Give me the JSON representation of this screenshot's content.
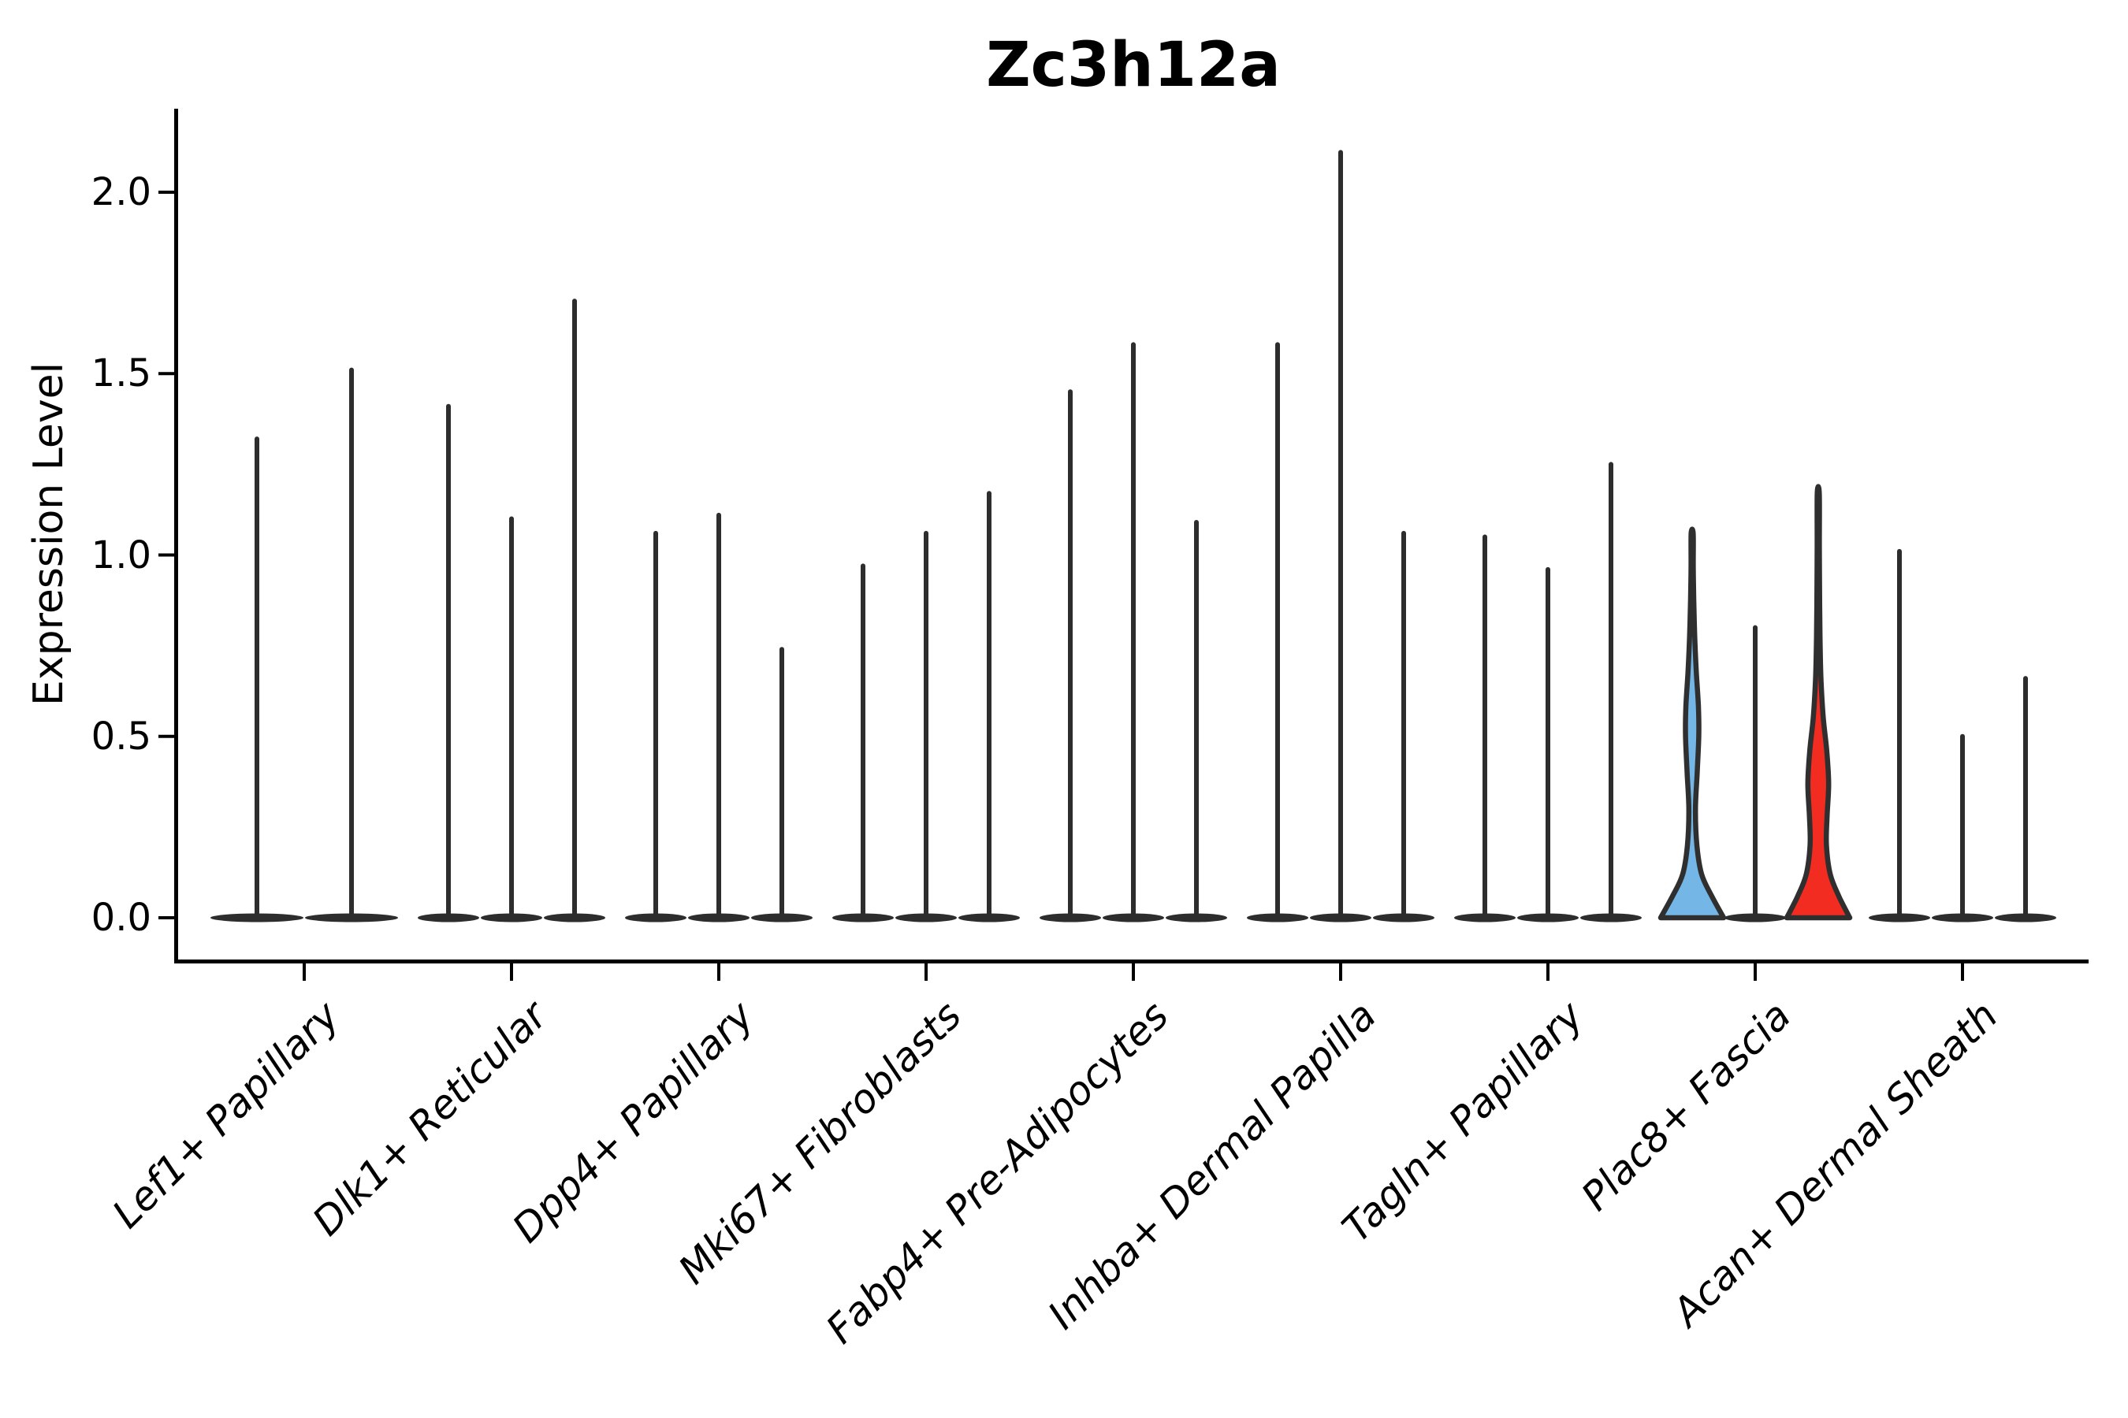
{
  "chart_data": {
    "type": "violin",
    "title": "Zc3h12a",
    "ylabel": "Expression Level",
    "xlabel": "",
    "grid": false,
    "legend": null,
    "background": "#ffffff",
    "ylim": [
      -0.115,
      2.22
    ],
    "yticks": [
      "0.0",
      "0.5",
      "1.0",
      "1.5",
      "2.0"
    ],
    "ytick_values": [
      0.0,
      0.5,
      1.0,
      1.5,
      2.0
    ],
    "colors": {
      "axis": "#000000",
      "violin_line": "#2d2d2d",
      "violin_outline": "#2f2f2f",
      "highlight_blue": "#74b7e7",
      "highlight_red": "#f22c20"
    },
    "description": "Violin plot of Zc3h12a expression per fibroblast cell type; each category holds 2-3 near-zero-width violins (expression concentrated at 0 with a thin spike to the max value); the first and third violins of Plac8+ Fascia are highlighted blue and red.",
    "categories": [
      {
        "label": "Lef1+ Papillary",
        "violins": [
          {
            "max": 1.32,
            "style": "thin"
          },
          {
            "max": 1.51,
            "style": "thin"
          }
        ]
      },
      {
        "label": "Dlk1+ Reticular",
        "violins": [
          {
            "max": 1.41,
            "style": "thin"
          },
          {
            "max": 1.1,
            "style": "thin"
          },
          {
            "max": 1.7,
            "style": "thin"
          }
        ]
      },
      {
        "label": "Dpp4+ Papillary",
        "violins": [
          {
            "max": 1.06,
            "style": "thin"
          },
          {
            "max": 1.11,
            "style": "thin"
          },
          {
            "max": 0.74,
            "style": "thin"
          }
        ]
      },
      {
        "label": "Mki67+ Fibroblasts",
        "violins": [
          {
            "max": 0.97,
            "style": "thin"
          },
          {
            "max": 1.06,
            "style": "thin"
          },
          {
            "max": 1.17,
            "style": "thin"
          }
        ]
      },
      {
        "label": "Fabp4+ Pre-Adipocytes",
        "violins": [
          {
            "max": 1.45,
            "style": "thin"
          },
          {
            "max": 1.58,
            "style": "thin"
          },
          {
            "max": 1.09,
            "style": "thin"
          }
        ]
      },
      {
        "label": "Inhba+ Dermal Papilla",
        "violins": [
          {
            "max": 1.58,
            "style": "thin"
          },
          {
            "max": 2.11,
            "style": "thin"
          },
          {
            "max": 1.06,
            "style": "thin"
          }
        ]
      },
      {
        "label": "Tagln+ Papillary",
        "violins": [
          {
            "max": 1.05,
            "style": "thin"
          },
          {
            "max": 0.96,
            "style": "thin"
          },
          {
            "max": 1.25,
            "style": "thin"
          }
        ]
      },
      {
        "label": "Plac8+ Fascia",
        "violins": [
          {
            "max": 1.06,
            "style": "filled",
            "fill_key": "highlight_blue",
            "profile": [
              [
                0,
                1.0
              ],
              [
                0.06,
                0.62
              ],
              [
                0.12,
                0.3
              ],
              [
                0.2,
                0.15
              ],
              [
                0.3,
                0.105
              ],
              [
                0.4,
                0.16
              ],
              [
                0.5,
                0.21
              ],
              [
                0.58,
                0.2
              ],
              [
                0.68,
                0.13
              ],
              [
                0.78,
                0.08
              ],
              [
                0.88,
                0.05
              ],
              [
                0.97,
                0.035
              ],
              [
                1.06,
                0.006
              ]
            ]
          },
          {
            "max": 0.8,
            "style": "thin"
          },
          {
            "max": 1.17,
            "style": "filled",
            "fill_key": "highlight_red",
            "profile": [
              [
                0,
                1.0
              ],
              [
                0.06,
                0.65
              ],
              [
                0.12,
                0.38
              ],
              [
                0.2,
                0.26
              ],
              [
                0.28,
                0.28
              ],
              [
                0.37,
                0.33
              ],
              [
                0.46,
                0.27
              ],
              [
                0.55,
                0.16
              ],
              [
                0.65,
                0.09
              ],
              [
                0.75,
                0.06
              ],
              [
                0.86,
                0.045
              ],
              [
                1.02,
                0.035
              ],
              [
                1.17,
                0.006
              ]
            ]
          }
        ]
      },
      {
        "label": "Acan+ Dermal Sheath",
        "violins": [
          {
            "max": 1.01,
            "style": "thin"
          },
          {
            "max": 0.5,
            "style": "thin"
          },
          {
            "max": 0.66,
            "style": "thin"
          }
        ]
      }
    ]
  }
}
